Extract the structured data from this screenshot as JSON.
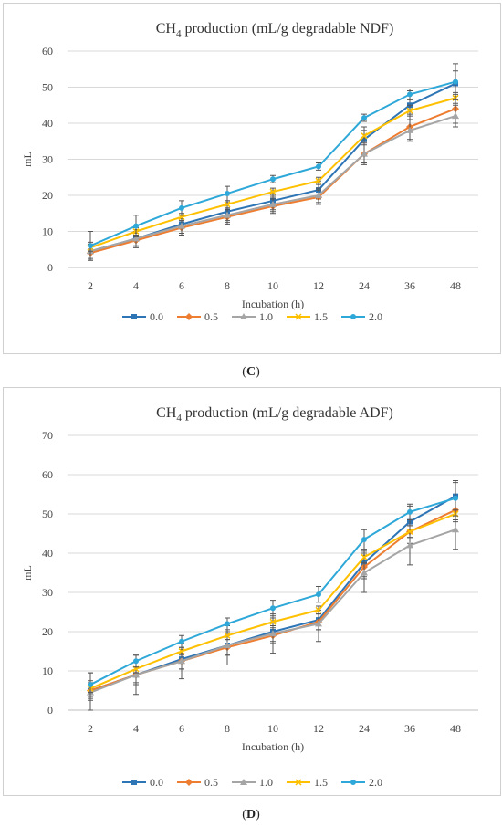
{
  "panels": [
    {
      "letter": "C"
    },
    {
      "letter": "D"
    }
  ],
  "chart_data": [
    {
      "type": "line",
      "title": "CH4 production (mL/g degradable NDF)",
      "title_main": "CH",
      "title_sub": "4",
      "title_rest": " production (mL/g degradable NDF)",
      "xlabel": "Incubation (h)",
      "ylabel": "mL",
      "categories": [
        "2",
        "4",
        "6",
        "8",
        "10",
        "12",
        "24",
        "36",
        "48"
      ],
      "ylim": [
        0,
        60
      ],
      "yticks": [
        0,
        10,
        20,
        30,
        40,
        50,
        60
      ],
      "legend_position": "bottom",
      "grid": "horizontal",
      "series": [
        {
          "name": "0.0",
          "color": "#2E75B6",
          "marker": "square",
          "values": [
            4.5,
            8.0,
            12.0,
            15.5,
            18.5,
            21.5,
            35.5,
            45.0,
            51.0
          ],
          "errors": [
            2.5,
            2.5,
            2.5,
            2.5,
            2.5,
            2.5,
            3.5,
            4.0,
            3.5
          ]
        },
        {
          "name": "0.5",
          "color": "#ED7D31",
          "marker": "diamond",
          "values": [
            4.0,
            7.5,
            11.0,
            14.0,
            17.0,
            19.5,
            31.5,
            39.0,
            44.0
          ],
          "errors": [
            2.0,
            2.0,
            2.0,
            2.0,
            2.0,
            2.0,
            3.0,
            3.5,
            4.0
          ]
        },
        {
          "name": "1.0",
          "color": "#A5A5A5",
          "marker": "triangle",
          "values": [
            4.5,
            8.0,
            11.5,
            14.5,
            17.5,
            20.0,
            31.5,
            38.0,
            42.0
          ],
          "errors": [
            2.0,
            2.0,
            2.0,
            2.0,
            2.0,
            2.0,
            2.5,
            3.0,
            3.0
          ]
        },
        {
          "name": "1.5",
          "color": "#FFC000",
          "marker": "x",
          "values": [
            5.5,
            10.0,
            14.0,
            17.5,
            21.0,
            24.0,
            36.5,
            43.5,
            47.0
          ],
          "errors": [
            1.0,
            1.0,
            1.0,
            1.0,
            1.0,
            1.0,
            1.5,
            1.5,
            1.5
          ]
        },
        {
          "name": "2.0",
          "color": "#2EA8D8",
          "marker": "circle",
          "values": [
            6.0,
            11.5,
            16.5,
            20.5,
            24.5,
            28.0,
            41.5,
            48.0,
            51.5
          ],
          "errors": [
            4.0,
            3.0,
            2.0,
            2.0,
            1.0,
            1.0,
            1.0,
            1.5,
            5.0
          ]
        }
      ]
    },
    {
      "type": "line",
      "title": "CH4 production (mL/g degradable ADF)",
      "title_main": "CH",
      "title_sub": "4",
      "title_rest": " production (mL/g degradable ADF)",
      "xlabel": "Incubation (h)",
      "ylabel": "mL",
      "categories": [
        "2",
        "4",
        "6",
        "8",
        "10",
        "12",
        "24",
        "36",
        "48"
      ],
      "ylim": [
        0,
        70
      ],
      "yticks": [
        0,
        10,
        20,
        30,
        40,
        50,
        60,
        70
      ],
      "legend_position": "bottom",
      "grid": "horizontal",
      "series": [
        {
          "name": "0.0",
          "color": "#2E75B6",
          "marker": "square",
          "values": [
            5.0,
            9.0,
            13.0,
            16.5,
            20.0,
            23.0,
            37.5,
            48.0,
            54.5
          ],
          "errors": [
            2.5,
            2.5,
            2.5,
            2.5,
            2.5,
            2.5,
            3.5,
            4.0,
            3.5
          ]
        },
        {
          "name": "0.5",
          "color": "#ED7D31",
          "marker": "diamond",
          "values": [
            5.0,
            9.0,
            12.5,
            16.0,
            19.0,
            22.5,
            36.5,
            45.5,
            51.0
          ],
          "errors": [
            2.0,
            2.0,
            2.0,
            2.0,
            2.0,
            2.0,
            3.0,
            3.0,
            3.0
          ]
        },
        {
          "name": "1.0",
          "color": "#A5A5A5",
          "marker": "triangle",
          "values": [
            4.5,
            9.0,
            12.5,
            16.5,
            19.5,
            22.0,
            35.0,
            42.0,
            46.0
          ],
          "errors": [
            5.0,
            5.0,
            4.5,
            5.0,
            5.0,
            4.5,
            5.0,
            5.0,
            5.0
          ]
        },
        {
          "name": "1.5",
          "color": "#FFC000",
          "marker": "x",
          "values": [
            5.5,
            10.5,
            15.0,
            19.0,
            22.5,
            25.5,
            39.0,
            45.5,
            50.0
          ],
          "errors": [
            1.0,
            1.0,
            1.0,
            1.0,
            1.0,
            1.0,
            1.5,
            1.5,
            1.5
          ]
        },
        {
          "name": "2.0",
          "color": "#2EA8D8",
          "marker": "circle",
          "values": [
            6.5,
            12.5,
            17.5,
            22.0,
            26.0,
            29.5,
            43.5,
            50.5,
            54.0
          ],
          "errors": [
            3.0,
            1.5,
            1.5,
            1.5,
            2.0,
            2.0,
            2.5,
            2.0,
            4.5
          ]
        }
      ]
    }
  ]
}
